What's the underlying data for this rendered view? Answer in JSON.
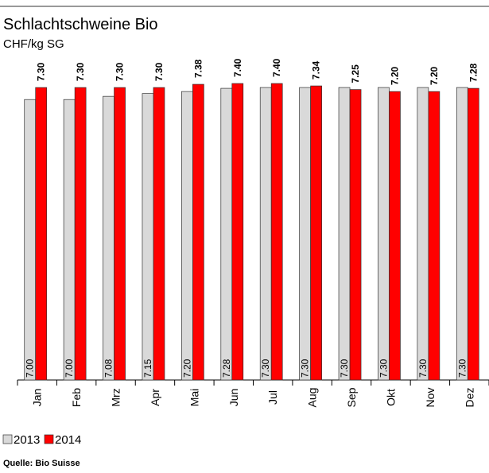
{
  "chart_data": {
    "type": "bar",
    "title": "Schlachtschweine Bio",
    "y_label": "CHF/kg SG",
    "source": "Quelle: Bio Suisse",
    "categories": [
      "Jan",
      "Feb",
      "Mrz",
      "Apr",
      "Mai",
      "Jun",
      "Jul",
      "Aug",
      "Sep",
      "Okt",
      "Nov",
      "Dez"
    ],
    "series": [
      {
        "name": "2013",
        "color": "#d9d9d9",
        "values": [
          7.0,
          7.0,
          7.08,
          7.15,
          7.2,
          7.28,
          7.3,
          7.3,
          7.3,
          7.3,
          7.3,
          7.3
        ],
        "value_labels": [
          "7.00",
          "7.00",
          "7.08",
          "7.15",
          "7.20",
          "7.28",
          "7.30",
          "7.30",
          "7.30",
          "7.30",
          "7.30",
          "7.30"
        ]
      },
      {
        "name": "2014",
        "color": "#ff0000",
        "values": [
          7.3,
          7.3,
          7.3,
          7.3,
          7.38,
          7.4,
          7.4,
          7.34,
          7.25,
          7.2,
          7.2,
          7.28
        ],
        "value_labels": [
          "7.30",
          "7.30",
          "7.30",
          "7.30",
          "7.38",
          "7.40",
          "7.40",
          "7.34",
          "7.25",
          "7.20",
          "7.20",
          "7.28"
        ]
      }
    ],
    "ylim": [
      0,
      7.5
    ]
  }
}
